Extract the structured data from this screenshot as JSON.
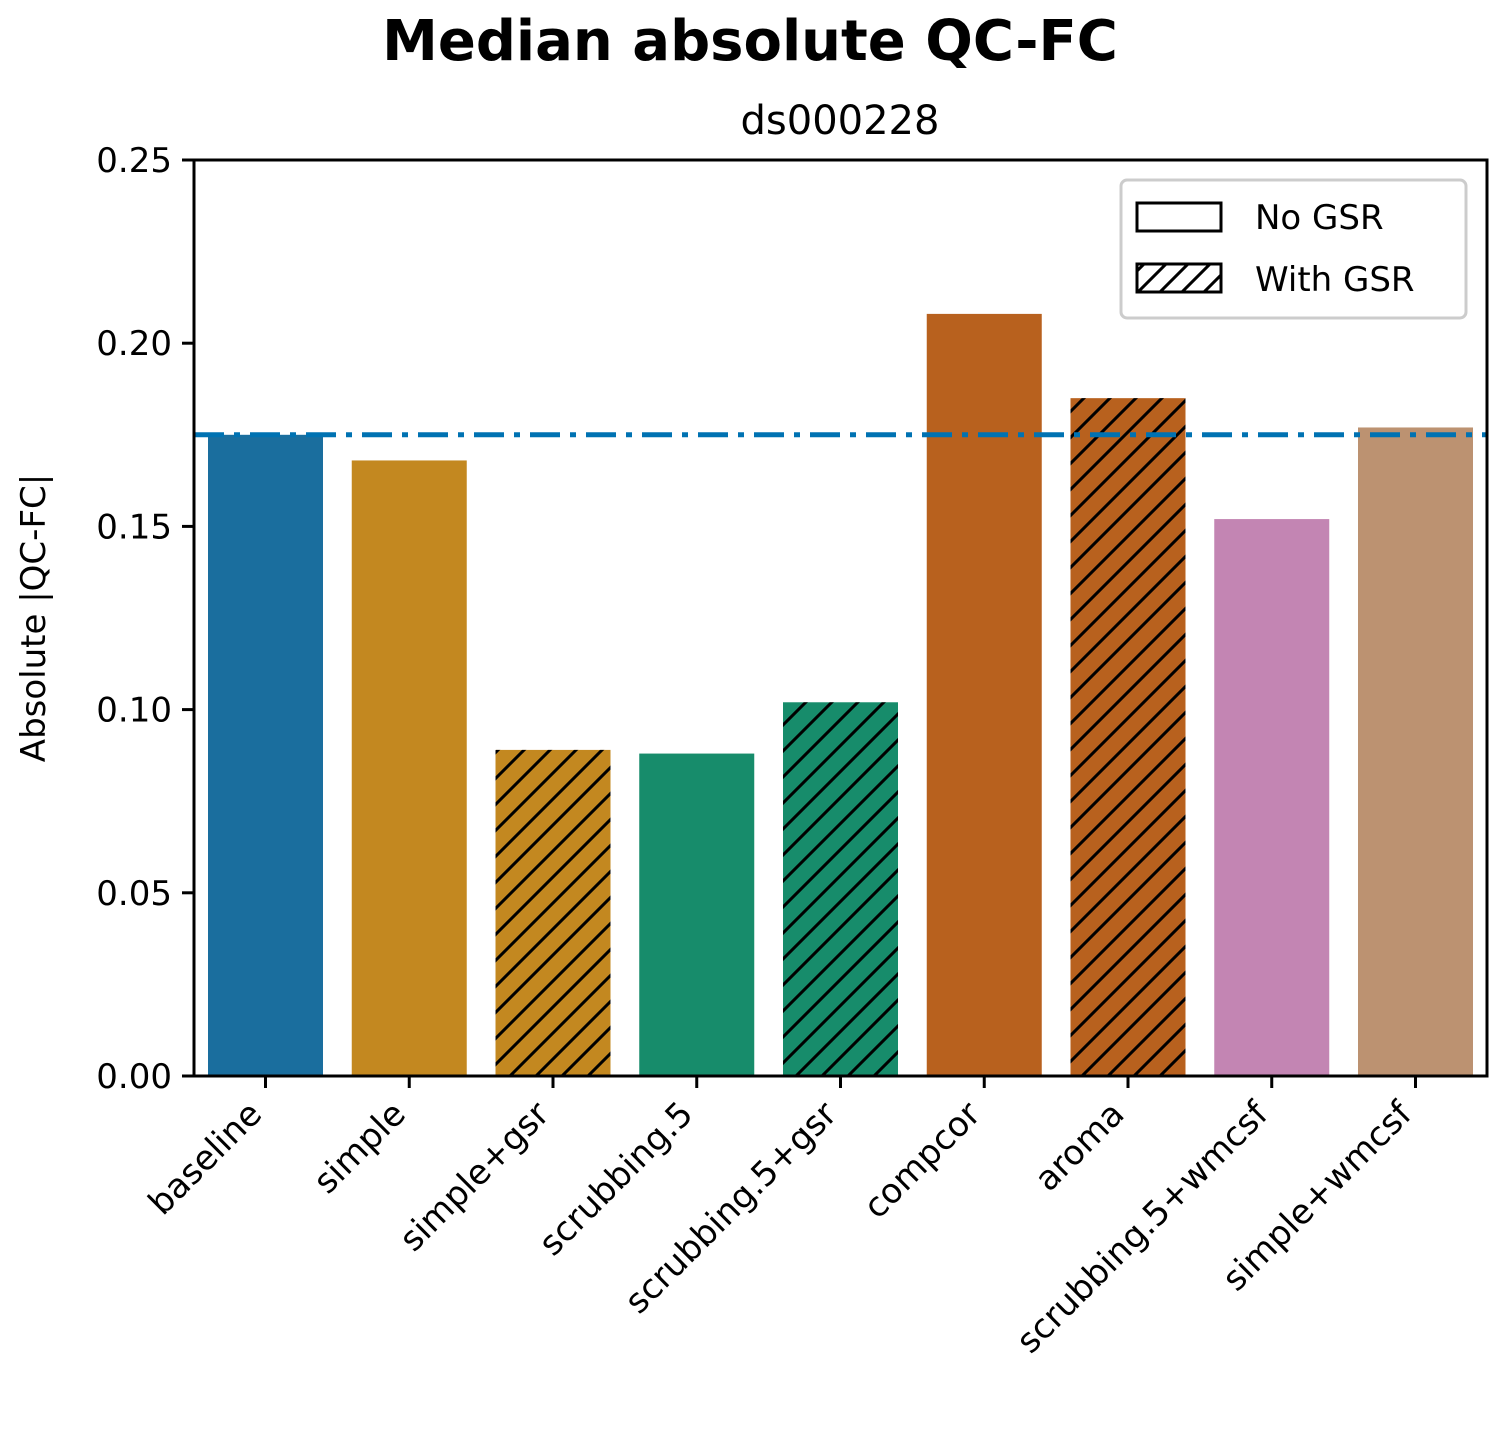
{
  "chart_data": {
    "type": "bar",
    "title": "Median absolute QC-FC",
    "subtitle": "ds000228",
    "xlabel": "",
    "ylabel": "Absolute |QC-FC|",
    "ylim": [
      0,
      0.25
    ],
    "yticks": [
      "0.00",
      "0.05",
      "0.10",
      "0.15",
      "0.20",
      "0.25"
    ],
    "grid": false,
    "categories": [
      "baseline",
      "simple",
      "simple+gsr",
      "scrubbing.5",
      "scrubbing.5+gsr",
      "compcor",
      "aroma",
      "scrubbing.5+wmcsf",
      "simple+wmcsf"
    ],
    "values": [
      0.175,
      0.168,
      0.089,
      0.088,
      0.102,
      0.208,
      0.185,
      0.152,
      0.177
    ],
    "colors": [
      "#1a6e9e",
      "#c38820",
      "#c38820",
      "#178c6b",
      "#178c6b",
      "#b8611e",
      "#b8611e",
      "#c385b3",
      "#bc9271"
    ],
    "hatched": [
      false,
      false,
      true,
      false,
      true,
      false,
      true,
      false,
      false
    ],
    "reference_line": {
      "value": 0.175,
      "color": "#0072b2",
      "style": "dash-dot"
    },
    "legend": {
      "position": "top-right",
      "entries": [
        {
          "label": "No GSR",
          "hatched": false
        },
        {
          "label": "With GSR",
          "hatched": true
        }
      ]
    }
  }
}
